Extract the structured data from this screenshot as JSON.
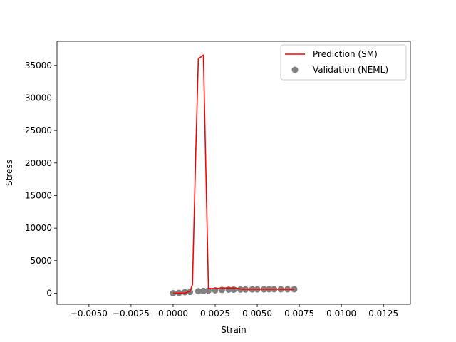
{
  "chart_data": {
    "type": "line",
    "title": "",
    "xlabel": "Strain",
    "ylabel": "Stress",
    "xlim": [
      -0.0069,
      0.0141
    ],
    "ylim": [
      -1700,
      38700
    ],
    "xticks": [
      -0.005,
      -0.0025,
      0.0,
      0.0025,
      0.005,
      0.0075,
      0.01,
      0.0125
    ],
    "xtick_labels": [
      "−0.0050",
      "−0.0025",
      "0.0000",
      "0.0025",
      "0.0050",
      "0.0075",
      "0.0100",
      "0.0125"
    ],
    "yticks": [
      0,
      5000,
      10000,
      15000,
      20000,
      25000,
      30000,
      35000
    ],
    "ytick_labels": [
      "0",
      "5000",
      "10000",
      "15000",
      "20000",
      "25000",
      "30000",
      "35000"
    ],
    "grid": false,
    "legend_position": "top-right",
    "series": [
      {
        "name": "Prediction (SM)",
        "kind": "line",
        "color": "#ff0000",
        "x": [
          0.0,
          0.00035,
          0.0007,
          0.001,
          0.00115,
          0.00135,
          0.0015,
          0.0018,
          0.0021,
          0.0025,
          0.0029,
          0.0033,
          0.0037,
          0.0041,
          0.0045,
          0.005,
          0.0055,
          0.006,
          0.0065,
          0.0072
        ],
        "y": [
          0,
          0,
          0,
          300,
          1300,
          22000,
          36000,
          36600,
          700,
          700,
          800,
          800,
          800,
          600,
          600,
          600,
          600,
          600,
          600,
          600
        ]
      },
      {
        "name": "Validation (NEML)",
        "kind": "scatter",
        "color": "#808080",
        "x": [
          0.0,
          0.00035,
          0.0007,
          0.001,
          0.0015,
          0.0018,
          0.0021,
          0.0025,
          0.0029,
          0.0033,
          0.0036,
          0.004,
          0.0043,
          0.0047,
          0.005,
          0.0054,
          0.0057,
          0.006,
          0.0064,
          0.0068,
          0.0072
        ],
        "y": [
          0,
          50,
          150,
          200,
          300,
          350,
          400,
          450,
          500,
          550,
          550,
          560,
          570,
          580,
          590,
          590,
          600,
          600,
          600,
          600,
          600
        ]
      }
    ]
  }
}
